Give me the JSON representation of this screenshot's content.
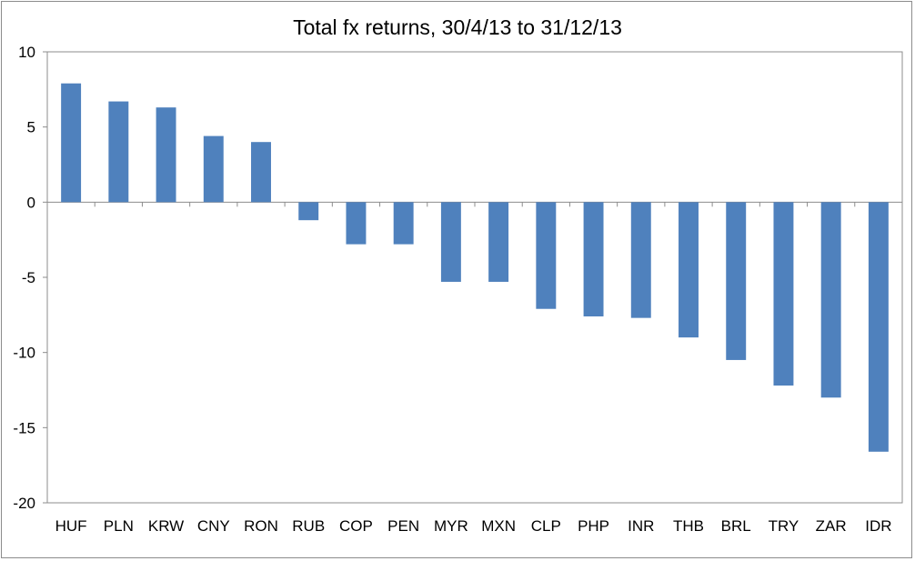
{
  "chart_data": {
    "type": "bar",
    "title": "Total fx returns, 30/4/13 to 31/12/13",
    "xlabel": "",
    "ylabel": "",
    "categories": [
      "HUF",
      "PLN",
      "KRW",
      "CNY",
      "RON",
      "RUB",
      "COP",
      "PEN",
      "MYR",
      "MXN",
      "CLP",
      "PHP",
      "INR",
      "THB",
      "BRL",
      "TRY",
      "ZAR",
      "IDR"
    ],
    "values": [
      7.9,
      6.7,
      6.3,
      4.4,
      4.0,
      -1.2,
      -2.8,
      -2.8,
      -5.3,
      -5.3,
      -7.1,
      -7.6,
      -7.7,
      -9.0,
      -10.5,
      -12.2,
      -13.0,
      -16.6
    ],
    "ylim": [
      -20,
      10
    ],
    "yticks": [
      10,
      5,
      0,
      -5,
      -10,
      -15,
      -20
    ],
    "grid": false,
    "legend": "none",
    "bar_color": "#4f81bd"
  }
}
